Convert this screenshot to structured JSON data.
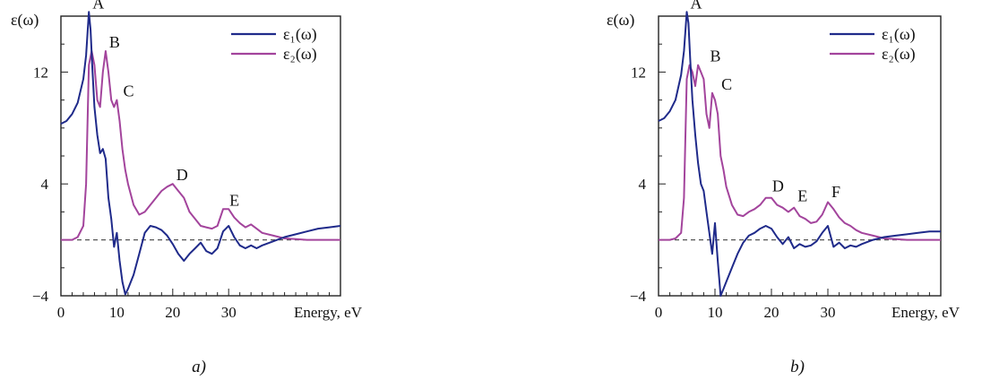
{
  "colors": {
    "eps1": "#1f2a8a",
    "eps2": "#a3449c",
    "axis": "#222222",
    "zero_line": "#555555"
  },
  "chart_data": [
    {
      "type": "line",
      "caption": "a)",
      "ylabel": "ε(ω)",
      "xlabel": "Energy, eV",
      "xlim": [
        0,
        50
      ],
      "ylim": [
        -4,
        16
      ],
      "x_ticks": [
        0,
        10,
        20,
        30
      ],
      "y_ticks": [
        -4,
        4,
        12
      ],
      "legend_position": "top-right",
      "series": [
        {
          "name": "ε₁(ω)",
          "color_key": "eps1",
          "x": [
            0,
            1,
            2,
            3,
            4,
            4.5,
            5,
            5.3,
            5.6,
            6,
            6.5,
            7,
            7.5,
            8,
            8.5,
            9,
            9.5,
            10,
            10.5,
            11,
            11.5,
            12,
            13,
            14,
            15,
            16,
            17,
            18,
            19,
            20,
            21,
            22,
            23,
            24,
            25,
            26,
            27,
            28,
            29,
            30,
            31,
            32,
            33,
            34,
            35,
            36,
            38,
            40,
            42,
            44,
            46,
            48,
            50
          ],
          "y": [
            8.3,
            8.5,
            9,
            9.8,
            11.5,
            13.2,
            16.3,
            15,
            12.5,
            9.5,
            7.5,
            6.2,
            6.5,
            5.8,
            3,
            1.5,
            -0.5,
            0.5,
            -1.5,
            -3,
            -3.9,
            -3.5,
            -2.5,
            -1,
            0.5,
            1,
            0.9,
            0.7,
            0.3,
            -0.3,
            -1,
            -1.5,
            -1,
            -0.6,
            -0.2,
            -0.8,
            -1,
            -0.6,
            0.6,
            1,
            0.2,
            -0.4,
            -0.6,
            -0.4,
            -0.6,
            -0.4,
            -0.1,
            0.2,
            0.4,
            0.6,
            0.8,
            0.9,
            1
          ]
        },
        {
          "name": "ε₂(ω)",
          "color_key": "eps2",
          "x": [
            0,
            2,
            3,
            4,
            4.5,
            5,
            5.5,
            6,
            6.5,
            7,
            7.5,
            8,
            8.5,
            9,
            9.5,
            10,
            10.5,
            11,
            11.5,
            12,
            13,
            14,
            15,
            16,
            17,
            18,
            19,
            20,
            21,
            22,
            23,
            24,
            25,
            26,
            27,
            28,
            29,
            30,
            31,
            32,
            33,
            34,
            35,
            36,
            38,
            40,
            42,
            44,
            46,
            48,
            50
          ],
          "y": [
            0,
            0,
            0.2,
            1,
            4,
            12.5,
            13.5,
            12.5,
            10,
            9.5,
            12,
            13.5,
            12,
            10,
            9.5,
            10,
            8.5,
            6.5,
            5,
            4,
            2.5,
            1.8,
            2,
            2.5,
            3,
            3.5,
            3.8,
            4.0,
            3.5,
            3,
            2,
            1.5,
            1,
            0.9,
            0.8,
            1,
            2.2,
            2.2,
            1.6,
            1.2,
            0.9,
            1.1,
            0.8,
            0.5,
            0.3,
            0.1,
            0.05,
            0,
            0,
            0,
            0
          ]
        }
      ],
      "annotations": [
        {
          "text": "A",
          "x": 5,
          "y": 16.3
        },
        {
          "text": "B",
          "x": 8,
          "y": 13.5
        },
        {
          "text": "C",
          "x": 10.5,
          "y": 10
        },
        {
          "text": "D",
          "x": 20,
          "y": 4
        },
        {
          "text": "E",
          "x": 29.5,
          "y": 2.2
        }
      ]
    },
    {
      "type": "line",
      "caption": "b)",
      "ylabel": "ε(ω)",
      "xlabel": "Energy, eV",
      "xlim": [
        0,
        50
      ],
      "ylim": [
        -4,
        16
      ],
      "x_ticks": [
        0,
        10,
        20,
        30
      ],
      "y_ticks": [
        -4,
        4,
        12
      ],
      "legend_position": "top-right",
      "series": [
        {
          "name": "ε₁(ω)",
          "color_key": "eps1",
          "x": [
            0,
            1,
            2,
            3,
            4,
            4.5,
            5,
            5.3,
            5.6,
            6,
            6.5,
            7,
            7.5,
            8,
            8.5,
            9,
            9.5,
            10,
            10.5,
            11,
            11.5,
            12,
            13,
            14,
            15,
            16,
            17,
            18,
            19,
            20,
            21,
            22,
            23,
            24,
            25,
            26,
            27,
            28,
            29,
            30,
            31,
            32,
            33,
            34,
            35,
            36,
            38,
            40,
            42,
            44,
            46,
            48,
            50
          ],
          "y": [
            8.5,
            8.7,
            9.2,
            10,
            11.8,
            13.5,
            16.3,
            15.5,
            13,
            10,
            7.5,
            5.5,
            4,
            3.5,
            2,
            0.5,
            -1,
            1.2,
            -1.5,
            -4,
            -3.5,
            -3,
            -2,
            -1,
            -0.2,
            0.3,
            0.5,
            0.8,
            1,
            0.8,
            0.2,
            -0.3,
            0.2,
            -0.6,
            -0.3,
            -0.5,
            -0.4,
            -0.1,
            0.5,
            1,
            -0.5,
            -0.2,
            -0.6,
            -0.4,
            -0.5,
            -0.3,
            0,
            0.2,
            0.3,
            0.4,
            0.5,
            0.6,
            0.6
          ]
        },
        {
          "name": "ε₂(ω)",
          "color_key": "eps2",
          "x": [
            0,
            2,
            3,
            4,
            4.5,
            5,
            5.5,
            6,
            6.5,
            7,
            7.5,
            8,
            8.5,
            9,
            9.5,
            10,
            10.5,
            11,
            11.5,
            12,
            13,
            14,
            15,
            16,
            17,
            18,
            19,
            20,
            21,
            22,
            23,
            24,
            25,
            26,
            27,
            28,
            29,
            30,
            31,
            32,
            33,
            34,
            35,
            36,
            38,
            40,
            42,
            44,
            46,
            48,
            50
          ],
          "y": [
            0,
            0,
            0.1,
            0.5,
            3,
            11.5,
            12.5,
            12,
            11,
            12.5,
            12,
            11.5,
            9,
            8,
            10.5,
            10,
            9,
            6,
            5,
            3.8,
            2.5,
            1.8,
            1.7,
            2,
            2.2,
            2.5,
            3,
            3,
            2.5,
            2.3,
            2,
            2.3,
            1.7,
            1.5,
            1.2,
            1.3,
            1.8,
            2.7,
            2.2,
            1.6,
            1.2,
            1,
            0.7,
            0.5,
            0.3,
            0.1,
            0.05,
            0,
            0,
            0,
            0
          ]
        }
      ],
      "annotations": [
        {
          "text": "A",
          "x": 5,
          "y": 16.3
        },
        {
          "text": "B",
          "x": 8.5,
          "y": 12.5
        },
        {
          "text": "C",
          "x": 10.5,
          "y": 10.5
        },
        {
          "text": "D",
          "x": 19.5,
          "y": 3.2
        },
        {
          "text": "E",
          "x": 24,
          "y": 2.5
        },
        {
          "text": "F",
          "x": 30,
          "y": 2.8
        }
      ]
    }
  ]
}
